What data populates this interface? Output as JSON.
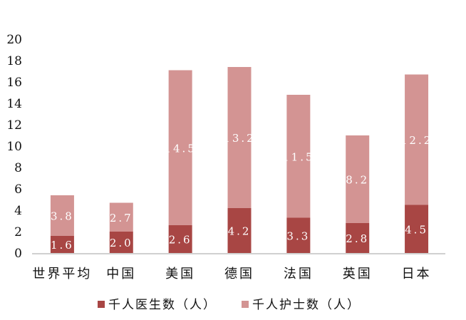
{
  "chart_data": {
    "type": "bar",
    "stacked": true,
    "categories": [
      "世界平均",
      "中国",
      "美国",
      "德国",
      "法国",
      "英国",
      "日本"
    ],
    "series": [
      {
        "name": "千人医生数（人）",
        "color": "#A84644",
        "values": [
          1.6,
          2.0,
          2.6,
          4.2,
          3.3,
          2.8,
          4.5
        ]
      },
      {
        "name": "千人护士数（人）",
        "color": "#D39493",
        "values": [
          3.8,
          2.7,
          14.5,
          13.2,
          11.5,
          8.2,
          12.2
        ]
      }
    ],
    "ylim": [
      0,
      20
    ],
    "yticks": [
      0,
      2,
      4,
      6,
      8,
      10,
      12,
      14,
      16,
      18,
      20
    ],
    "grid": false,
    "legend": "bottom",
    "data_labels": true
  }
}
